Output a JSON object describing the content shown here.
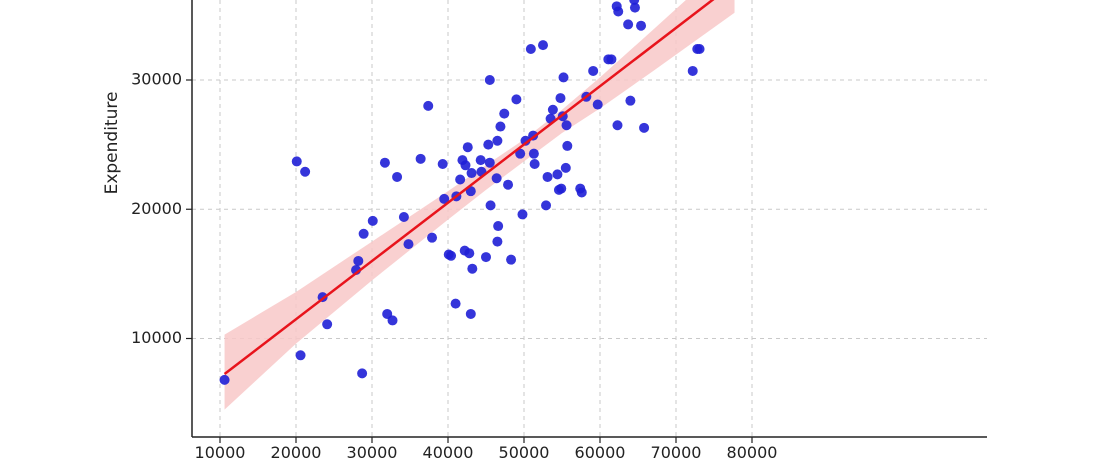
{
  "chart_data": {
    "type": "scatter",
    "title": "",
    "xlabel": "",
    "ylabel": "Expenditure",
    "xlim": [
      7500,
      81000
    ],
    "ylim": [
      2500,
      36500
    ],
    "xticks": [
      10000,
      20000,
      30000,
      40000,
      50000,
      60000,
      70000,
      80000
    ],
    "yticks": [
      10000,
      20000,
      30000
    ],
    "grid": true,
    "colors": {
      "points": "#1f1fd6",
      "fit_line": "#e8141c",
      "band": "#f8c8c8"
    },
    "series": [
      {
        "type": "scatter",
        "points": [
          [
            10600,
            6800
          ],
          [
            20100,
            23700
          ],
          [
            20600,
            8700
          ],
          [
            21200,
            22900
          ],
          [
            23500,
            13200
          ],
          [
            24100,
            11100
          ],
          [
            27900,
            15300
          ],
          [
            28200,
            16000
          ],
          [
            28700,
            7300
          ],
          [
            28900,
            18100
          ],
          [
            30100,
            19100
          ],
          [
            31700,
            23600
          ],
          [
            32000,
            11900
          ],
          [
            32700,
            11400
          ],
          [
            33300,
            22500
          ],
          [
            34200,
            19400
          ],
          [
            34800,
            17300
          ],
          [
            36400,
            23900
          ],
          [
            37400,
            28000
          ],
          [
            37900,
            17800
          ],
          [
            39300,
            23500
          ],
          [
            39500,
            20800
          ],
          [
            40100,
            16500
          ],
          [
            40400,
            16400
          ],
          [
            41000,
            12700
          ],
          [
            41100,
            21000
          ],
          [
            41600,
            22300
          ],
          [
            41900,
            23800
          ],
          [
            42200,
            16800
          ],
          [
            42300,
            23400
          ],
          [
            42600,
            24800
          ],
          [
            42800,
            16600
          ],
          [
            43000,
            21400
          ],
          [
            43100,
            22800
          ],
          [
            43200,
            15400
          ],
          [
            43000,
            11900
          ],
          [
            44300,
            23800
          ],
          [
            44400,
            22900
          ],
          [
            45000,
            16300
          ],
          [
            45300,
            25000
          ],
          [
            45500,
            30000
          ],
          [
            45500,
            23600
          ],
          [
            45600,
            20300
          ],
          [
            46400,
            22400
          ],
          [
            46500,
            17500
          ],
          [
            46600,
            18700
          ],
          [
            46500,
            25300
          ],
          [
            46900,
            26400
          ],
          [
            47400,
            27400
          ],
          [
            47900,
            21900
          ],
          [
            48300,
            16100
          ],
          [
            49000,
            28500
          ],
          [
            49500,
            24300
          ],
          [
            49800,
            19600
          ],
          [
            50200,
            25300
          ],
          [
            50900,
            32400
          ],
          [
            51200,
            25700
          ],
          [
            51300,
            24300
          ],
          [
            51400,
            23500
          ],
          [
            52500,
            32700
          ],
          [
            52900,
            20300
          ],
          [
            53100,
            22500
          ],
          [
            53500,
            27000
          ],
          [
            53800,
            27700
          ],
          [
            54400,
            22700
          ],
          [
            54600,
            21500
          ],
          [
            54800,
            28600
          ],
          [
            54900,
            21600
          ],
          [
            55100,
            27200
          ],
          [
            55200,
            30200
          ],
          [
            55500,
            23200
          ],
          [
            55600,
            26500
          ],
          [
            55700,
            24900
          ],
          [
            57400,
            21600
          ],
          [
            57600,
            21300
          ],
          [
            58200,
            28700
          ],
          [
            59100,
            30700
          ],
          [
            59700,
            28100
          ],
          [
            61100,
            31600
          ],
          [
            61500,
            31600
          ],
          [
            62200,
            35700
          ],
          [
            62300,
            26500
          ],
          [
            62400,
            35300
          ],
          [
            63700,
            34300
          ],
          [
            64000,
            28400
          ],
          [
            64500,
            36200
          ],
          [
            64600,
            35600
          ],
          [
            65400,
            34200
          ],
          [
            65800,
            26300
          ],
          [
            72200,
            30700
          ],
          [
            72800,
            32400
          ],
          [
            73100,
            32400
          ]
        ]
      },
      {
        "type": "line",
        "fit": [
          [
            10600,
            7250
          ],
          [
            77700,
            37500
          ]
        ]
      }
    ],
    "confidence_band": [
      [
        10600,
        4500,
        10300
      ],
      [
        20000,
        9600,
        13600
      ],
      [
        30000,
        14500,
        17500
      ],
      [
        40000,
        19200,
        21400
      ],
      [
        45000,
        21500,
        23400
      ],
      [
        50000,
        23700,
        25400
      ],
      [
        55000,
        25900,
        27700
      ],
      [
        60000,
        27800,
        30200
      ],
      [
        67000,
        30700,
        33900
      ],
      [
        77700,
        35200,
        39600
      ]
    ]
  },
  "axes": {
    "x_ticks": [
      "10000",
      "20000",
      "30000",
      "40000",
      "50000",
      "60000",
      "70000",
      "80000"
    ],
    "y_ticks": [
      "10000",
      "20000",
      "30000"
    ],
    "ylabel": "Expenditure"
  }
}
